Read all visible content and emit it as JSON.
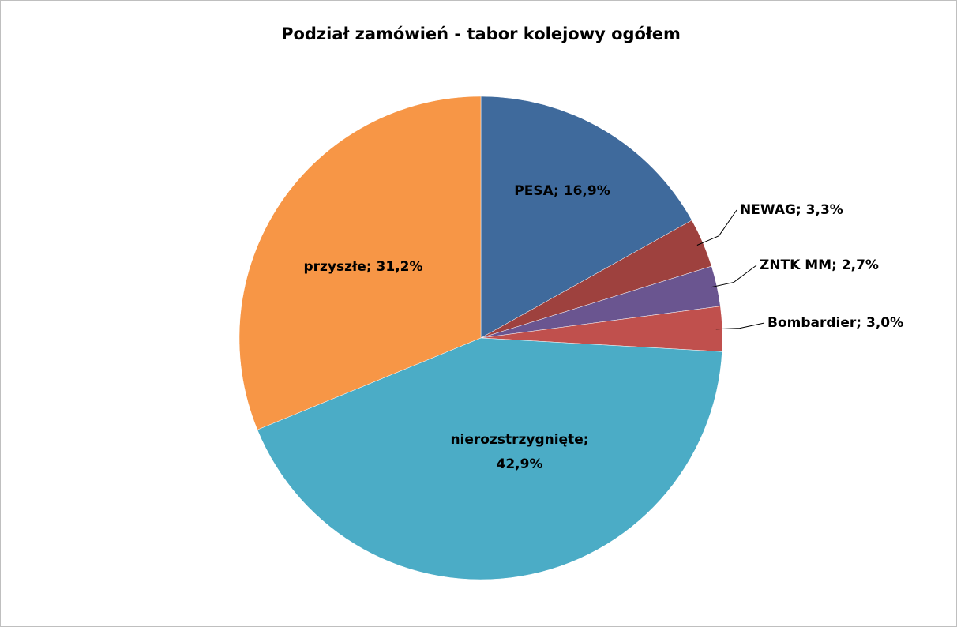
{
  "chart_data": {
    "type": "pie",
    "title": "Podział zamówień - tabor kolejowy ogółem",
    "values": [
      16.9,
      3.3,
      2.7,
      3.0,
      42.9,
      31.2
    ],
    "value_labels": [
      "PESA; 16,9%",
      "NEWAG; 3,3%",
      "ZNTK MM; 2,7%",
      "Bombardier; 3,0%",
      "nierozstrzygnięte; 42,9%",
      "przyszłe; 31,2%"
    ],
    "colors": [
      "#3f6a9c",
      "#9e413e",
      "#6a5590",
      "#c0504d",
      "#4bacc6",
      "#f79646"
    ]
  }
}
